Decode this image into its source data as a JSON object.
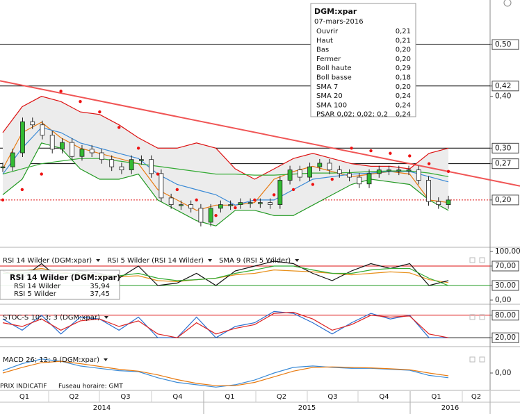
{
  "tooltip": {
    "title": "DGM:xpar",
    "date": "07-mars-2016",
    "rows": [
      {
        "label": "Ouvrir",
        "value": "0,21",
        "color": "#000000"
      },
      {
        "label": "Haut",
        "value": "0,21",
        "color": "#000000"
      },
      {
        "label": "Bas",
        "value": "0,20",
        "color": "#000000"
      },
      {
        "label": "Fermer",
        "value": "0,20",
        "color": "#000000"
      },
      {
        "label": "Boll haute",
        "value": "0,29",
        "color": "#dd1111"
      },
      {
        "label": "Boll basse",
        "value": "0,18",
        "color": "#229922"
      },
      {
        "label": "SMA 7",
        "value": "0,20",
        "color": "#e87a10"
      },
      {
        "label": "SMA 20",
        "value": "0,24",
        "color": "#3a8ad6"
      },
      {
        "label": "SMA 100",
        "value": "0,24",
        "color": "#33aa33"
      },
      {
        "label": "PSAR 0,02; 0,02; 0,2",
        "value": "0,24",
        "color": "#dd1111"
      }
    ]
  },
  "rsi_box": {
    "title": "RSI 14 Wilder (DGM:xpar)",
    "rows": [
      {
        "label": "RSI 14 Wilder",
        "value": "35,94"
      },
      {
        "label": "RSI 5 Wilder",
        "value": "37,45"
      }
    ]
  },
  "chart_data": [
    {
      "type": "candlestick",
      "ylim": [
        0.11,
        0.586
      ],
      "yticks": [
        {
          "value": 0.5,
          "label": "0,50"
        },
        {
          "value": 0.42,
          "label": "0,42"
        },
        {
          "value": 0.4,
          "label": "0,40"
        },
        {
          "value": 0.3,
          "label": "0,30"
        },
        {
          "value": 0.27,
          "label": "0,27"
        },
        {
          "value": 0.2,
          "label": "0,20"
        }
      ],
      "levels": [
        {
          "value": 0.5,
          "color": "#000000"
        },
        {
          "value": 0.42,
          "color": "#000000"
        },
        {
          "value": 0.3,
          "color": "#000000"
        },
        {
          "value": 0.27,
          "color": "#000000"
        },
        {
          "value": 0.2,
          "color": "#dd1111",
          "dotted": true
        }
      ],
      "trend_line": [
        0.43,
        0.227
      ],
      "close": {
        "name": "Fermer",
        "values": [
          0.264,
          0.291,
          0.351,
          0.345,
          0.325,
          0.298,
          0.311,
          0.284,
          0.298,
          0.291,
          0.278,
          0.264,
          0.258,
          0.278,
          0.278,
          0.251,
          0.204,
          0.191,
          0.191,
          0.184,
          0.157,
          0.184,
          0.191,
          0.191,
          0.195,
          0.195,
          0.195,
          0.191,
          0.238,
          0.258,
          0.244,
          0.264,
          0.271,
          0.258,
          0.251,
          0.244,
          0.231,
          0.251,
          0.258,
          0.258,
          0.258,
          0.258,
          0.238,
          0.197,
          0.191,
          0.2
        ]
      },
      "band": {
        "upper": "Boll haute",
        "lower": "Boll basse"
      },
      "series": [
        {
          "name": "Boll haute",
          "color": "#dd1111",
          "values": [
            0.33,
            0.38,
            0.4,
            0.39,
            0.37,
            0.365,
            0.345,
            0.32,
            0.3,
            0.3,
            0.31,
            0.3,
            0.26,
            0.24,
            0.26,
            0.28,
            0.29,
            0.28,
            0.27,
            0.265,
            0.265,
            0.26,
            0.29,
            0.3
          ]
        },
        {
          "name": "Boll basse",
          "color": "#229922",
          "values": [
            0.21,
            0.24,
            0.31,
            0.3,
            0.26,
            0.24,
            0.24,
            0.25,
            0.2,
            0.18,
            0.16,
            0.15,
            0.18,
            0.18,
            0.17,
            0.17,
            0.19,
            0.21,
            0.23,
            0.24,
            0.235,
            0.23,
            0.2,
            0.18
          ]
        },
        {
          "name": "SMA 7",
          "color": "#e87a10",
          "values": [
            0.26,
            0.33,
            0.35,
            0.32,
            0.3,
            0.29,
            0.28,
            0.27,
            0.22,
            0.2,
            0.18,
            0.19,
            0.19,
            0.195,
            0.24,
            0.255,
            0.265,
            0.255,
            0.245,
            0.25,
            0.255,
            0.25,
            0.2,
            0.195
          ]
        },
        {
          "name": "SMA 20",
          "color": "#3a8ad6",
          "values": [
            0.25,
            0.3,
            0.34,
            0.33,
            0.31,
            0.3,
            0.29,
            0.28,
            0.25,
            0.23,
            0.22,
            0.21,
            0.19,
            0.2,
            0.2,
            0.22,
            0.24,
            0.245,
            0.25,
            0.252,
            0.255,
            0.255,
            0.245,
            0.235
          ]
        },
        {
          "name": "SMA 100",
          "color": "#33aa33",
          "values": [
            0.25,
            0.26,
            0.27,
            0.275,
            0.28,
            0.28,
            0.275,
            0.27,
            0.265,
            0.26,
            0.255,
            0.25,
            0.25,
            0.248,
            0.248,
            0.25,
            0.252,
            0.252,
            0.253,
            0.255,
            0.256,
            0.256,
            0.252,
            0.245
          ]
        }
      ],
      "psar": {
        "name": "PSAR 0,02; 0,02; 0,2",
        "color": "#ee1111",
        "values": [
          0.2,
          0.22,
          0.25,
          0.41,
          0.39,
          0.37,
          0.34,
          0.3,
          0.25,
          0.22,
          0.2,
          0.17,
          0.185,
          0.2,
          0.21,
          0.22,
          0.23,
          0.24,
          0.3,
          0.295,
          0.29,
          0.285,
          0.27,
          0.255
        ]
      }
    },
    {
      "type": "line",
      "ylim": [
        0,
        100
      ],
      "yticks": [
        {
          "value": 100,
          "label": "100,00"
        },
        {
          "value": 70,
          "label": "70,00"
        },
        {
          "value": 30,
          "label": "30,00"
        },
        {
          "value": 0,
          "label": "0,00"
        }
      ],
      "levels": [
        {
          "value": 70,
          "color": "#dd1111"
        },
        {
          "value": 30,
          "color": "#229922"
        }
      ],
      "series": [
        {
          "name": "RSI 14 Wilder (DGM:xpar)",
          "color": "#e8901a",
          "values": [
            55,
            60,
            65,
            58,
            52,
            50,
            48,
            50,
            40,
            38,
            42,
            45,
            52,
            55,
            62,
            60,
            58,
            55,
            52,
            55,
            58,
            56,
            42,
            36
          ]
        },
        {
          "name": "RSI 5 Wilder (RSI 14 Wilder)",
          "color": "#111111",
          "values": [
            60,
            45,
            75,
            40,
            60,
            55,
            45,
            70,
            30,
            35,
            55,
            30,
            60,
            70,
            80,
            75,
            55,
            40,
            60,
            75,
            65,
            75,
            30,
            40
          ]
        },
        {
          "name": "SMA 9 (RSI 5 Wilder)",
          "color": "#33aa33",
          "values": [
            55,
            55,
            60,
            55,
            55,
            52,
            50,
            55,
            45,
            40,
            42,
            45,
            55,
            62,
            70,
            70,
            62,
            55,
            55,
            62,
            65,
            65,
            45,
            30
          ]
        }
      ]
    },
    {
      "type": "line",
      "title": "STOC-S 10; 3; 3 (DGM:xpar)",
      "ylim": [
        0,
        100
      ],
      "yticks": [
        {
          "value": 80,
          "label": "80,00"
        },
        {
          "value": 20,
          "label": "20,00"
        }
      ],
      "levels": [
        {
          "value": 80,
          "color": "#dd1111"
        },
        {
          "value": 20,
          "color": "#111111"
        }
      ],
      "series": [
        {
          "color": "#2a6fd0",
          "values": [
            70,
            40,
            80,
            30,
            75,
            70,
            40,
            75,
            20,
            20,
            75,
            20,
            50,
            60,
            90,
            85,
            60,
            30,
            60,
            85,
            70,
            80,
            20,
            20
          ]
        },
        {
          "color": "#dd2222",
          "values": [
            60,
            50,
            70,
            40,
            65,
            70,
            50,
            65,
            30,
            20,
            60,
            30,
            45,
            55,
            85,
            88,
            70,
            40,
            55,
            80,
            75,
            78,
            30,
            20
          ]
        }
      ]
    },
    {
      "type": "line",
      "title": "MACD 26; 12; 9 (DGM:xpar)",
      "ylim": [
        -0.04,
        0.04
      ],
      "yticks": [
        {
          "value": 0,
          "label": "0,00"
        }
      ],
      "levels": [],
      "series": [
        {
          "color": "#3a8ad6",
          "values": [
            0.005,
            0.02,
            0.03,
            0.025,
            0.015,
            0.01,
            0.005,
            0.003,
            -0.01,
            -0.02,
            -0.025,
            -0.03,
            -0.025,
            -0.015,
            0,
            0.012,
            0.015,
            0.012,
            0.01,
            0.01,
            0.008,
            0.006,
            -0.005,
            -0.01
          ]
        },
        {
          "color": "#e87a10",
          "values": [
            0,
            0.012,
            0.022,
            0.025,
            0.02,
            0.014,
            0.008,
            0.004,
            -0.004,
            -0.014,
            -0.022,
            -0.027,
            -0.027,
            -0.02,
            -0.008,
            0.004,
            0.012,
            0.013,
            0.012,
            0.011,
            0.009,
            0.007,
            0,
            -0.006
          ]
        }
      ]
    }
  ],
  "xaxis": {
    "quarters": [
      "Q1",
      "Q2",
      "Q3",
      "Q4",
      "Q1",
      "Q2",
      "Q3",
      "Q4",
      "Q1",
      "Q2"
    ],
    "years": [
      "2014",
      "2015",
      "2016"
    ]
  },
  "footer": {
    "price_note": "PRIX INDICATIF",
    "timezone": "Fuseau horaire: GMT"
  }
}
